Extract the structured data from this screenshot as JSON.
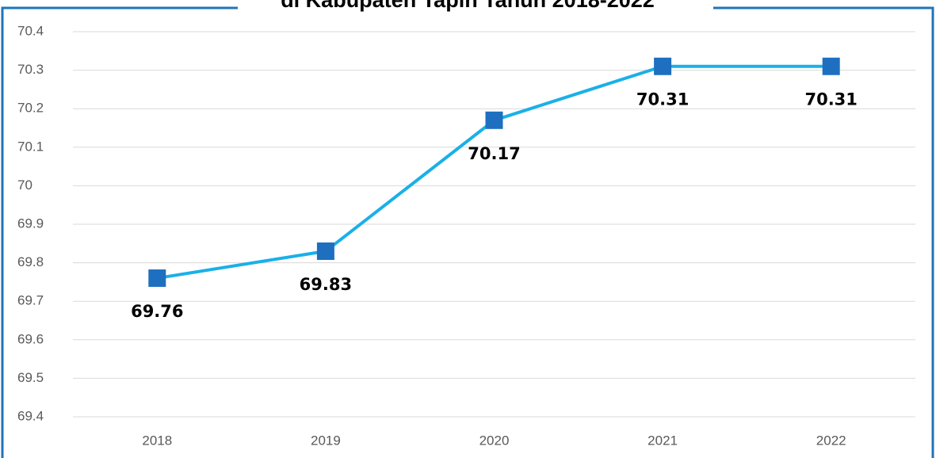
{
  "chart_data": {
    "type": "line",
    "title": "di Kabupaten Tapin Tahun 2018-2022",
    "categories": [
      "2018",
      "2019",
      "2020",
      "2021",
      "2022"
    ],
    "series": [
      {
        "name": null,
        "color": "#1ab0e8",
        "marker_color": "#1e6fc0",
        "values": [
          69.76,
          69.83,
          70.17,
          70.31,
          70.31
        ]
      }
    ],
    "ylim": [
      69.4,
      70.4
    ],
    "yticks": [
      69.4,
      69.5,
      69.6,
      69.7,
      69.8,
      69.9,
      70,
      70.1,
      70.2,
      70.3,
      70.4
    ],
    "grid": true
  }
}
